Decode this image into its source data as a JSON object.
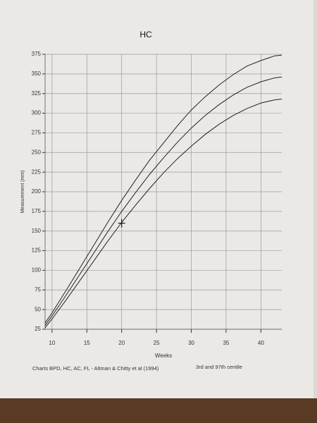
{
  "chart_data": {
    "type": "line",
    "title": "HC",
    "xlabel": "Weeks",
    "ylabel": "Measurement (mm)",
    "footnote": "Charts BPD, HC, AC, FL - Altman & Chitty et al (1994)",
    "note": "3rd and 97th centile",
    "x": [
      9,
      10,
      12,
      14,
      16,
      18,
      20,
      22,
      24,
      26,
      28,
      30,
      32,
      34,
      36,
      38,
      40,
      42,
      43
    ],
    "series": [
      {
        "color": "#222222",
        "values": [
          27,
          38,
          62,
          87,
          112,
          137,
          161,
          183,
          204,
          224,
          242,
          258,
          273,
          286,
          297,
          306,
          313,
          317,
          318
        ]
      },
      {
        "color": "#222222",
        "values": [
          30,
          42,
          68,
          95,
          122,
          149,
          175,
          199,
          222,
          243,
          263,
          281,
          297,
          311,
          323,
          333,
          340,
          345,
          346
        ]
      },
      {
        "color": "#222222",
        "values": [
          33,
          46,
          74,
          103,
          132,
          161,
          189,
          215,
          240,
          262,
          284,
          304,
          321,
          336,
          349,
          360,
          367,
          373,
          374
        ]
      }
    ],
    "point": {
      "x": 20,
      "y": 160
    },
    "xlim": [
      9,
      43
    ],
    "ylim": [
      25,
      375
    ],
    "xticks": [
      10,
      15,
      20,
      25,
      30,
      35,
      40
    ],
    "yticks": [
      25,
      50,
      75,
      100,
      125,
      150,
      175,
      200,
      225,
      250,
      275,
      300,
      325,
      350,
      375
    ],
    "grid": true
  }
}
